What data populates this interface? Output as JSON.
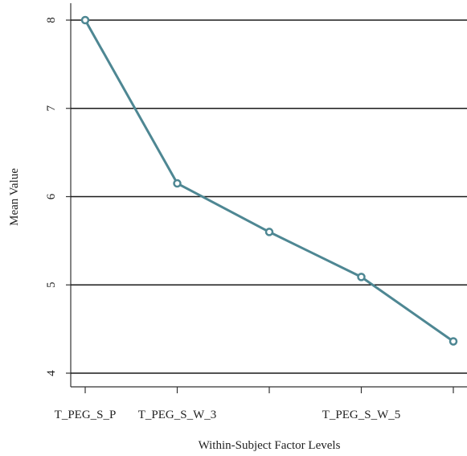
{
  "chart_data": {
    "type": "line",
    "title": "",
    "xlabel": "Within-Subject Factor Levels",
    "ylabel": "Mean Value",
    "categories": [
      "T_PEG_S_P",
      "T_PEG_S_W_3",
      "",
      "T_PEG_S_W_5",
      ""
    ],
    "series": [
      {
        "values": [
          8.0,
          6.15,
          5.6,
          5.09,
          4.36
        ]
      }
    ],
    "ylim": [
      4,
      8
    ],
    "yticks": [
      "4",
      "5",
      "6",
      "7",
      "8"
    ],
    "grid": "horizontal",
    "legend": "none",
    "colors": {
      "line": "#4e8793",
      "grid": "#1a1a1a",
      "axis": "#333333"
    }
  }
}
